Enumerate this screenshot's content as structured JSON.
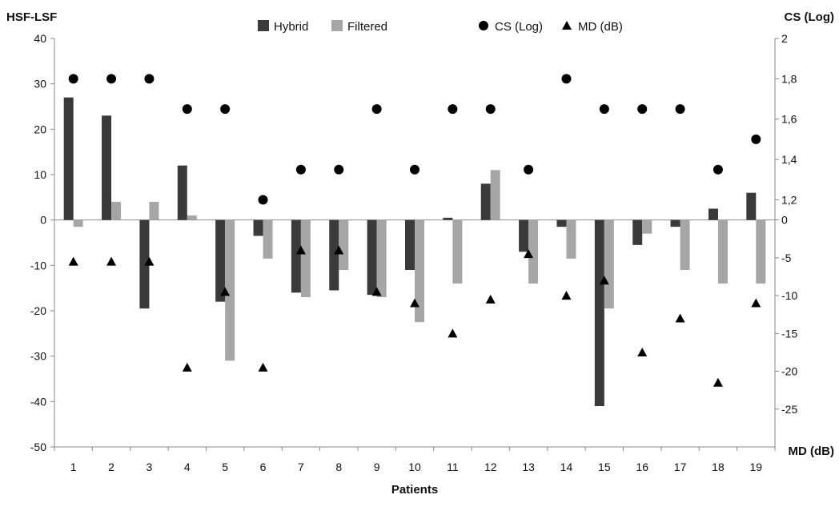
{
  "chart_data": {
    "type": "bar",
    "title": "",
    "xlabel": "Patients",
    "ylabel_left": "HSF-LSF",
    "ylabel_right_top": "CS (Log)",
    "ylabel_right_bottom": "MD (dB)",
    "categories": [
      "1",
      "2",
      "3",
      "4",
      "5",
      "6",
      "7",
      "8",
      "9",
      "10",
      "11",
      "12",
      "13",
      "14",
      "15",
      "16",
      "17",
      "18",
      "19"
    ],
    "ylim": [
      -50,
      40
    ],
    "yticks": [
      "40",
      "30",
      "20",
      "10",
      "0",
      "-10",
      "-20",
      "-30",
      "-40",
      "-50"
    ],
    "cs_ticks": [
      "2",
      "1,8",
      "1,6",
      "1,4",
      "1,2",
      "0"
    ],
    "md_ticks": [
      "-5",
      "-10",
      "-15",
      "-20",
      "-25"
    ],
    "grid": false,
    "legend_position": "top",
    "series": [
      {
        "name": "Hybrid",
        "kind": "bar",
        "color": "#3a3a3a",
        "values": [
          27,
          23,
          -19.5,
          12,
          -18,
          -3.5,
          -16,
          -15.5,
          -16.5,
          -11,
          0.5,
          8,
          -7,
          -1.5,
          -41,
          -5.5,
          -1.5,
          2.5,
          6
        ]
      },
      {
        "name": "Filtered",
        "kind": "bar",
        "color": "#a6a6a6",
        "values": [
          -1.5,
          4,
          4,
          1,
          -31,
          -8.5,
          -17,
          -11,
          -17,
          -22.5,
          -14,
          11,
          -14,
          -8.5,
          -19.5,
          -3,
          -11,
          -14,
          -14
        ]
      },
      {
        "name": "CS (Log)",
        "kind": "scatter",
        "marker": "circle",
        "axis": "CS",
        "values": [
          1.8,
          1.8,
          1.8,
          1.65,
          1.65,
          1.2,
          1.35,
          1.35,
          1.65,
          1.35,
          1.65,
          1.65,
          1.35,
          1.8,
          1.65,
          1.65,
          1.65,
          1.35,
          1.5
        ]
      },
      {
        "name": "MD (dB)",
        "kind": "scatter",
        "marker": "triangle",
        "axis": "MD",
        "values": [
          -5.5,
          -5.5,
          -5.5,
          -19.5,
          -9.5,
          -19.5,
          -4,
          -4,
          -9.5,
          -11,
          -15,
          -10.5,
          -4.5,
          -10,
          -8,
          -17.5,
          -13,
          -21.5,
          -11
        ]
      }
    ]
  }
}
